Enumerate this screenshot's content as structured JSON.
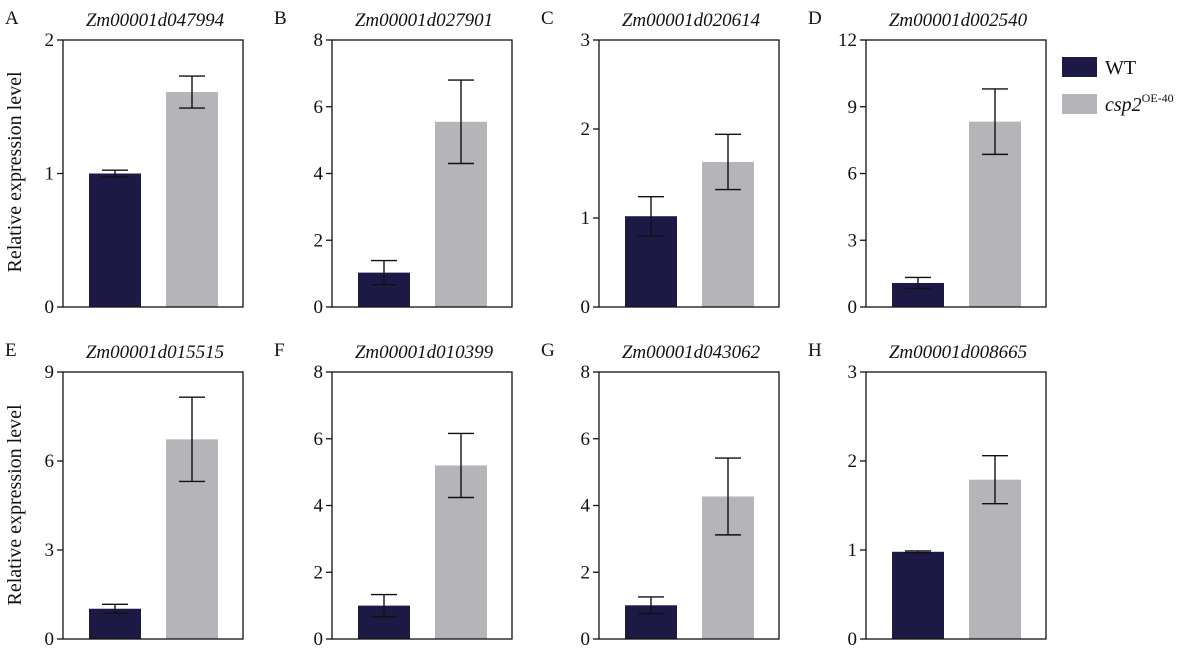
{
  "colors": {
    "wt": "#1c1a44",
    "oe": "#b5b4b9",
    "axis": "#111111"
  },
  "legend": {
    "wt_label": "WT",
    "oe_label": "csp2",
    "oe_sup": "OE-40"
  },
  "ylabel": "Relative expression level",
  "chart_data": [
    {
      "type": "bar",
      "letter": "A",
      "title": "Zm00001d047994",
      "ticks": [
        0,
        1,
        2
      ],
      "ylim": [
        0,
        2
      ],
      "categories": [
        "WT",
        "csp2OE-40"
      ],
      "values": [
        1.0,
        1.61
      ],
      "errors": [
        0.025,
        0.12
      ]
    },
    {
      "type": "bar",
      "letter": "B",
      "title": "Zm00001d027901",
      "ticks": [
        0,
        2,
        4,
        6,
        8
      ],
      "ylim": [
        0,
        8
      ],
      "categories": [
        "WT",
        "csp2OE-40"
      ],
      "values": [
        1.03,
        5.55
      ],
      "errors": [
        0.36,
        1.25
      ]
    },
    {
      "type": "bar",
      "letter": "C",
      "title": "Zm00001d020614",
      "ticks": [
        0,
        1,
        2,
        3
      ],
      "ylim": [
        0,
        3
      ],
      "categories": [
        "WT",
        "csp2OE-40"
      ],
      "values": [
        1.02,
        1.63
      ],
      "errors": [
        0.22,
        0.31
      ]
    },
    {
      "type": "bar",
      "letter": "D",
      "title": "Zm00001d002540",
      "ticks": [
        0,
        3,
        6,
        9,
        12
      ],
      "ylim": [
        0,
        12
      ],
      "categories": [
        "WT",
        "csp2OE-40"
      ],
      "values": [
        1.08,
        8.33
      ],
      "errors": [
        0.25,
        1.47
      ]
    },
    {
      "type": "bar",
      "letter": "E",
      "title": "Zm00001d015515",
      "ticks": [
        0,
        3,
        6,
        9
      ],
      "ylim": [
        0,
        9
      ],
      "categories": [
        "WT",
        "csp2OE-40"
      ],
      "values": [
        1.02,
        6.73
      ],
      "errors": [
        0.15,
        1.42
      ]
    },
    {
      "type": "bar",
      "letter": "F",
      "title": "Zm00001d010399",
      "ticks": [
        0,
        2,
        4,
        6,
        8
      ],
      "ylim": [
        0,
        8
      ],
      "categories": [
        "WT",
        "csp2OE-40"
      ],
      "values": [
        1.0,
        5.2
      ],
      "errors": [
        0.33,
        0.96
      ]
    },
    {
      "type": "bar",
      "letter": "G",
      "title": "Zm00001d043062",
      "ticks": [
        0,
        2,
        4,
        6,
        8
      ],
      "ylim": [
        0,
        8
      ],
      "categories": [
        "WT",
        "csp2OE-40"
      ],
      "values": [
        1.01,
        4.27
      ],
      "errors": [
        0.25,
        1.15
      ]
    },
    {
      "type": "bar",
      "letter": "H",
      "title": "Zm00001d008665",
      "ticks": [
        0,
        1,
        2,
        3
      ],
      "ylim": [
        0,
        3
      ],
      "categories": [
        "WT",
        "csp2OE-40"
      ],
      "values": [
        0.98,
        1.79
      ],
      "errors": [
        0.01,
        0.27
      ]
    }
  ]
}
